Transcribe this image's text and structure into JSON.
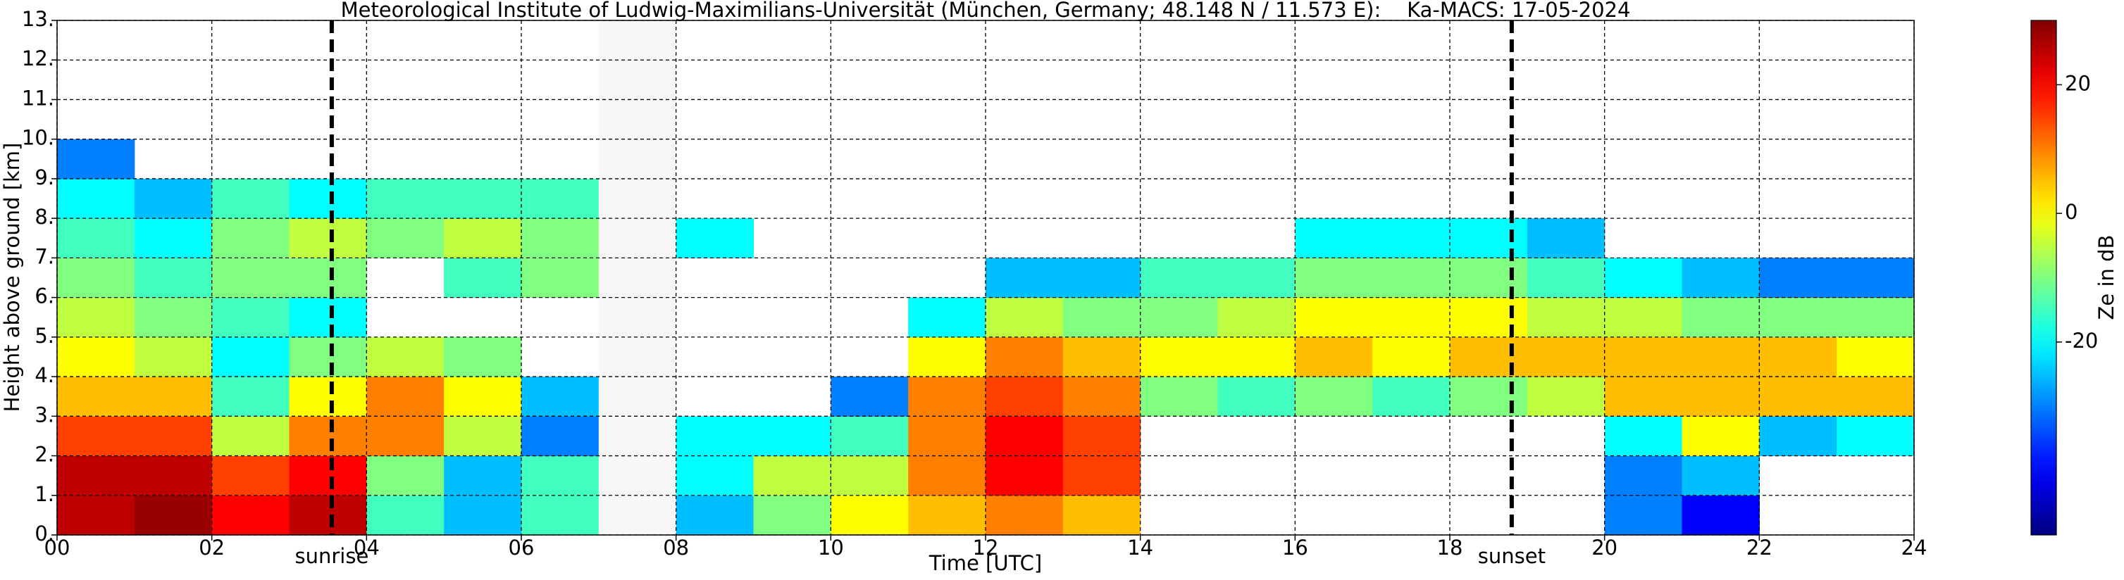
{
  "chart_data": {
    "type": "heatmap",
    "title": "Meteorological Institute of Ludwig-Maximilians-Universität (München, Germany; 48.148 N / 11.573 E):    Ka-MACS: 17-05-2024",
    "x_label": "Time [UTC]",
    "y_label": "Height above ground [km]",
    "colorbar_label": "Ze in dB",
    "colormap": "jet",
    "grid": true,
    "xlim": [
      0,
      24
    ],
    "ylim": [
      0,
      13
    ],
    "zlim": [
      -50,
      30
    ],
    "xticks": [
      {
        "value": 0,
        "label": "00"
      },
      {
        "value": 2,
        "label": "02"
      },
      {
        "value": 4,
        "label": "04"
      },
      {
        "value": 6,
        "label": "06"
      },
      {
        "value": 8,
        "label": "08"
      },
      10,
      12,
      14,
      16,
      18,
      20,
      22,
      24
    ],
    "yticks": [
      {
        "value": 0,
        "label": "0."
      },
      {
        "value": 1,
        "label": "1."
      },
      {
        "value": 2,
        "label": "2."
      },
      {
        "value": 3,
        "label": "3."
      },
      {
        "value": 4,
        "label": "4."
      },
      {
        "value": 5,
        "label": "5."
      },
      {
        "value": 6,
        "label": "6."
      },
      {
        "value": 7,
        "label": "7."
      },
      {
        "value": 8,
        "label": "8."
      },
      {
        "value": 9,
        "label": "9."
      },
      {
        "value": 10,
        "label": "10."
      },
      {
        "value": 11,
        "label": "11."
      },
      {
        "value": 12,
        "label": "12."
      },
      {
        "value": 13,
        "label": "13."
      }
    ],
    "zticks": [
      -20,
      0,
      20
    ],
    "annotations": [
      {
        "text": "sunrise",
        "x": 3.55
      },
      {
        "text": "sunset",
        "x": 18.8
      }
    ],
    "x": [
      0,
      1,
      2,
      3,
      4,
      5,
      6,
      7,
      8,
      9,
      10,
      11,
      12,
      13,
      14,
      15,
      16,
      17,
      18,
      19,
      20,
      21,
      22,
      23
    ],
    "heights": [
      0,
      1,
      2,
      3,
      4,
      5,
      6,
      7,
      8,
      9,
      10,
      11,
      12
    ],
    "z": [
      [
        25,
        25,
        15,
        5,
        0,
        -5,
        -10,
        -15,
        -20,
        -30,
        null,
        null,
        null
      ],
      [
        28,
        25,
        15,
        5,
        -5,
        -10,
        -15,
        -20,
        -25,
        null,
        null,
        null,
        null
      ],
      [
        20,
        15,
        -5,
        -15,
        -20,
        -15,
        -10,
        -10,
        -15,
        null,
        null,
        null,
        null
      ],
      [
        25,
        20,
        10,
        0,
        -10,
        -20,
        -10,
        -5,
        -20,
        null,
        null,
        null,
        null
      ],
      [
        -15,
        -10,
        10,
        10,
        -5,
        null,
        null,
        -10,
        -15,
        null,
        null,
        null,
        null
      ],
      [
        -25,
        -25,
        -5,
        0,
        -10,
        null,
        -15,
        -5,
        -15,
        null,
        null,
        null,
        null
      ],
      [
        -15,
        -15,
        -30,
        -25,
        null,
        null,
        -10,
        -10,
        -15,
        null,
        null,
        null,
        null
      ],
      [
        null,
        null,
        null,
        null,
        null,
        null,
        null,
        null,
        null,
        null,
        null,
        null,
        null
      ],
      [
        -25,
        -20,
        -20,
        null,
        null,
        null,
        null,
        -20,
        null,
        null,
        null,
        null,
        null
      ],
      [
        -10,
        -5,
        -20,
        null,
        null,
        null,
        null,
        null,
        null,
        null,
        null,
        null,
        null
      ],
      [
        0,
        -5,
        -15,
        -30,
        null,
        null,
        null,
        null,
        null,
        null,
        null,
        null,
        null
      ],
      [
        5,
        10,
        10,
        10,
        0,
        -20,
        null,
        null,
        null,
        null,
        null,
        null,
        null
      ],
      [
        10,
        20,
        20,
        15,
        10,
        -5,
        -25,
        null,
        null,
        null,
        null,
        null,
        null
      ],
      [
        5,
        15,
        15,
        10,
        5,
        -10,
        -25,
        null,
        null,
        null,
        null,
        null,
        null
      ],
      [
        null,
        null,
        null,
        -10,
        0,
        -10,
        -15,
        null,
        null,
        null,
        null,
        null,
        null
      ],
      [
        null,
        null,
        null,
        -15,
        0,
        -5,
        -15,
        null,
        null,
        null,
        null,
        null,
        null
      ],
      [
        null,
        null,
        null,
        -10,
        5,
        0,
        -10,
        -20,
        null,
        null,
        null,
        null,
        null
      ],
      [
        null,
        null,
        null,
        -15,
        0,
        0,
        -10,
        -20,
        null,
        null,
        null,
        null,
        null
      ],
      [
        null,
        null,
        null,
        -10,
        5,
        0,
        -10,
        -20,
        null,
        null,
        null,
        null,
        null
      ],
      [
        null,
        null,
        null,
        -5,
        5,
        -5,
        -15,
        -25,
        null,
        null,
        null,
        null,
        null
      ],
      [
        -30,
        -30,
        -20,
        5,
        5,
        -5,
        -20,
        null,
        null,
        null,
        null,
        null,
        null
      ],
      [
        -40,
        -25,
        0,
        5,
        5,
        -10,
        -25,
        null,
        null,
        null,
        null,
        null,
        null
      ],
      [
        null,
        null,
        -25,
        5,
        5,
        -10,
        -30,
        null,
        null,
        null,
        null,
        null,
        null
      ],
      [
        null,
        null,
        -20,
        5,
        0,
        -10,
        -30,
        null,
        null,
        null,
        null,
        null,
        null
      ]
    ]
  }
}
